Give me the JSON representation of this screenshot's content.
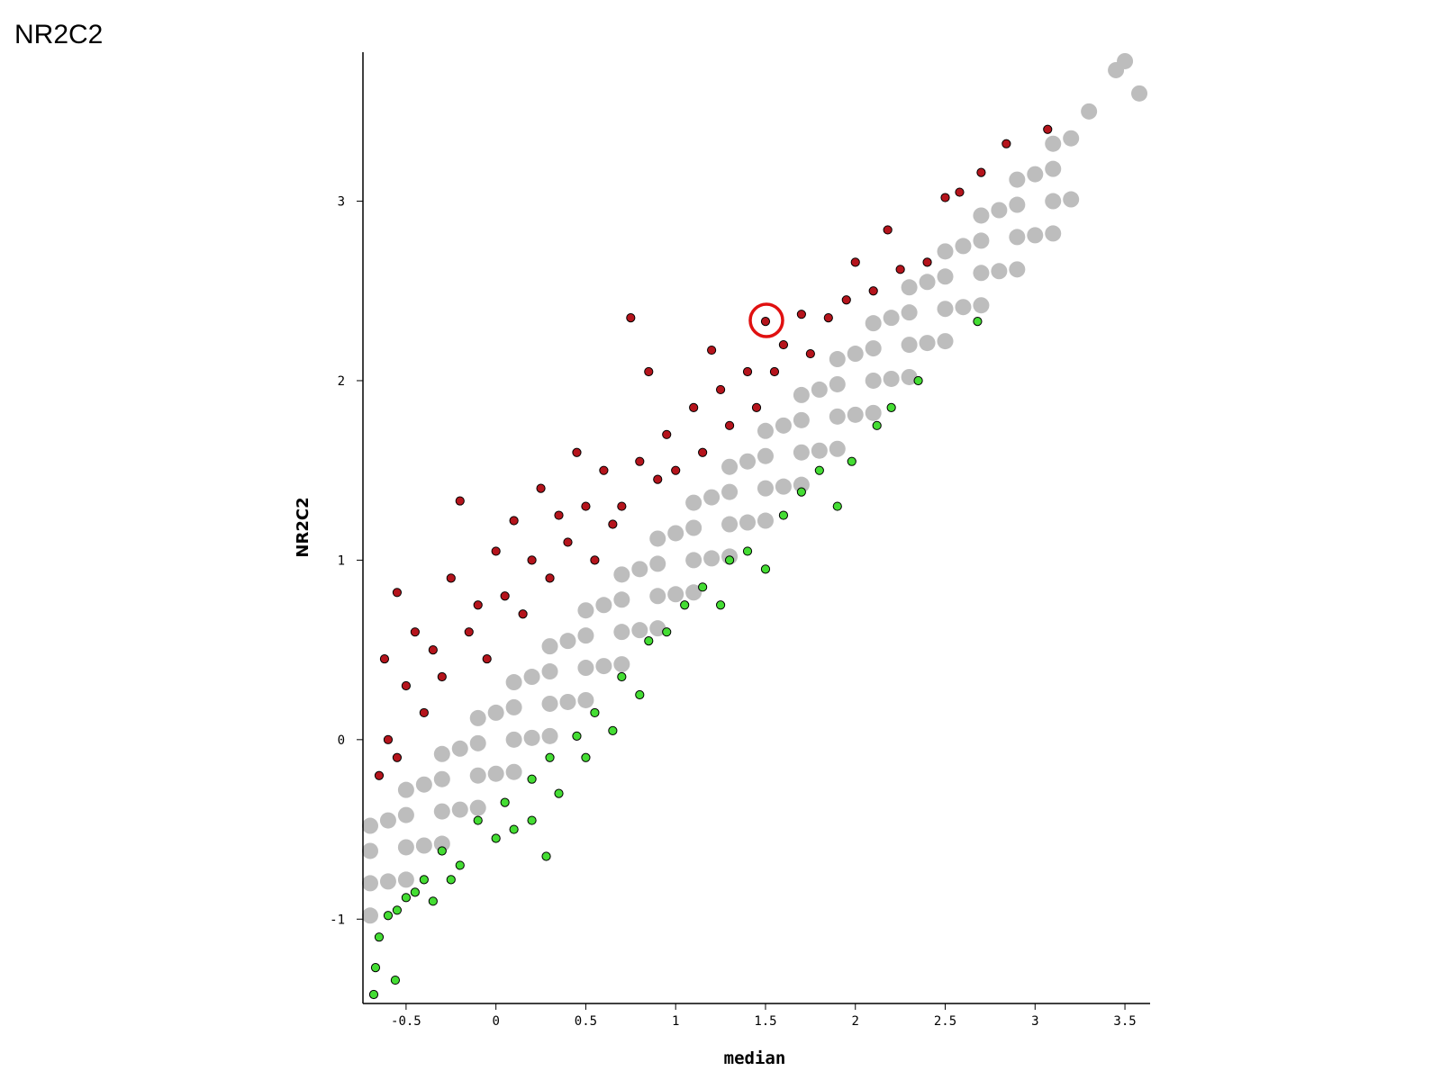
{
  "chart_data": {
    "type": "scatter",
    "title": "NR2C2",
    "x_label": "median",
    "y_label": "NR2C2",
    "xlim": [
      -0.74,
      3.64
    ],
    "ylim": [
      -1.47,
      3.83
    ],
    "xticks": [
      -0.5,
      0,
      0.5,
      1,
      1.5,
      2,
      2.5,
      3,
      3.5
    ],
    "yticks": [
      -1,
      0,
      1,
      2,
      3
    ],
    "grid": false,
    "series": [
      {
        "color": "#bdbdbd",
        "stroke": "none",
        "x": [
          -0.7,
          -0.5,
          -0.3,
          -0.1,
          0.1,
          0.3,
          0.5,
          0.7,
          0.9,
          1.1,
          1.3,
          1.5,
          1.7,
          1.9,
          2.1,
          2.3,
          2.5,
          2.7,
          2.9,
          3.1,
          -0.7,
          -0.5,
          -0.3,
          -0.1,
          0.1,
          0.3,
          0.5,
          0.7,
          0.9,
          1.1,
          1.3,
          1.5,
          1.7,
          1.9,
          2.1,
          2.3,
          2.5,
          2.7,
          2.9,
          3.1,
          -0.7,
          -0.5,
          -0.3,
          -0.1,
          0.1,
          0.3,
          0.5,
          0.7,
          0.9,
          1.1,
          1.3,
          1.5,
          1.7,
          1.9,
          2.1,
          2.3,
          2.5,
          2.7,
          2.9,
          3.1,
          -0.7,
          -0.5,
          -0.3,
          -0.1,
          0.1,
          0.3,
          0.5,
          0.7,
          0.9,
          1.1,
          1.3,
          1.5,
          1.7,
          1.9,
          2.1,
          2.3,
          2.5,
          2.7,
          2.9,
          3.1,
          -0.6,
          -0.4,
          -0.2,
          0,
          0.2,
          0.4,
          0.6,
          0.8,
          1,
          1.2,
          1.4,
          1.6,
          1.8,
          2,
          2.2,
          2.4,
          2.6,
          2.8,
          3,
          3.2,
          -0.6,
          -0.4,
          -0.2,
          0,
          0.2,
          0.4,
          0.6,
          0.8,
          1,
          1.2,
          1.4,
          1.6,
          1.8,
          2,
          2.2,
          2.4,
          2.6,
          2.8,
          3,
          3.2,
          3.3,
          3.45,
          3.5,
          3.58
        ],
        "values": [
          -0.98,
          -0.78,
          -0.58,
          -0.38,
          -0.18,
          0.02,
          0.22,
          0.42,
          0.62,
          0.82,
          1.02,
          1.22,
          1.42,
          1.62,
          1.82,
          2.02,
          2.22,
          2.42,
          2.62,
          2.82,
          -0.8,
          -0.6,
          -0.4,
          -0.2,
          0,
          0.2,
          0.4,
          0.6,
          0.8,
          1,
          1.2,
          1.4,
          1.6,
          1.8,
          2,
          2.2,
          2.4,
          2.6,
          2.8,
          3,
          -0.62,
          -0.42,
          -0.22,
          -0.02,
          0.18,
          0.38,
          0.58,
          0.78,
          0.98,
          1.18,
          1.38,
          1.58,
          1.78,
          1.98,
          2.18,
          2.38,
          2.58,
          2.78,
          2.98,
          3.18,
          -0.48,
          -0.28,
          -0.08,
          0.12,
          0.32,
          0.52,
          0.72,
          0.92,
          1.12,
          1.32,
          1.52,
          1.72,
          1.92,
          2.12,
          2.32,
          2.52,
          2.72,
          2.92,
          3.12,
          3.32,
          -0.79,
          -0.59,
          -0.39,
          -0.19,
          0.01,
          0.21,
          0.41,
          0.61,
          0.81,
          1.01,
          1.21,
          1.41,
          1.61,
          1.81,
          2.01,
          2.21,
          2.41,
          2.61,
          2.81,
          3.01,
          -0.45,
          -0.25,
          -0.05,
          0.15,
          0.35,
          0.55,
          0.75,
          0.95,
          1.15,
          1.35,
          1.55,
          1.75,
          1.95,
          2.15,
          2.35,
          2.55,
          2.75,
          2.95,
          3.15,
          3.35,
          3.5,
          3.73,
          3.78,
          3.6
        ]
      },
      {
        "color": "#b5141c",
        "stroke": "#000000",
        "x": [
          -0.65,
          -0.6,
          -0.62,
          -0.55,
          -0.5,
          -0.55,
          -0.45,
          -0.4,
          -0.35,
          -0.3,
          -0.25,
          -0.2,
          -0.15,
          -0.1,
          -0.05,
          0,
          0.05,
          0.1,
          0.15,
          0.2,
          0.25,
          0.3,
          0.35,
          0.4,
          0.45,
          0.5,
          0.55,
          0.6,
          0.65,
          0.7,
          0.75,
          0.8,
          0.85,
          0.9,
          0.95,
          1,
          1.1,
          1.15,
          1.2,
          1.25,
          1.3,
          1.4,
          1.45,
          1.5,
          1.55,
          1.6,
          1.7,
          1.75,
          1.85,
          1.95,
          2,
          2.1,
          2.18,
          2.25,
          2.4,
          2.5,
          2.58,
          2.7,
          2.84,
          3.07
        ],
        "values": [
          -0.2,
          0,
          0.45,
          0.82,
          0.3,
          -0.1,
          0.6,
          0.15,
          0.5,
          0.35,
          0.9,
          1.33,
          0.6,
          0.75,
          0.45,
          1.05,
          0.8,
          1.22,
          0.7,
          1,
          1.4,
          0.9,
          1.25,
          1.1,
          1.6,
          1.3,
          1,
          1.5,
          1.2,
          1.3,
          2.35,
          1.55,
          2.05,
          1.45,
          1.7,
          1.5,
          1.85,
          1.6,
          2.17,
          1.95,
          1.75,
          2.05,
          1.85,
          2.33,
          2.05,
          2.2,
          2.37,
          2.15,
          2.35,
          2.45,
          2.66,
          2.5,
          2.84,
          2.62,
          2.66,
          3.02,
          3.05,
          3.16,
          3.32,
          3.4
        ]
      },
      {
        "color": "#44dd33",
        "stroke": "#000000",
        "x": [
          -0.68,
          -0.67,
          -0.65,
          -0.6,
          -0.55,
          -0.56,
          -0.5,
          -0.45,
          -0.4,
          -0.35,
          -0.3,
          -0.25,
          -0.2,
          -0.1,
          0,
          0.05,
          0.1,
          0.2,
          0.2,
          0.28,
          0.3,
          0.35,
          0.45,
          0.5,
          0.55,
          0.65,
          0.7,
          0.8,
          0.85,
          0.95,
          1.05,
          1.15,
          1.25,
          1.3,
          1.4,
          1.5,
          1.6,
          1.7,
          1.8,
          1.9,
          1.98,
          2.12,
          2.2,
          2.35,
          2.68
        ],
        "values": [
          -1.42,
          -1.27,
          -1.1,
          -0.98,
          -0.95,
          -1.34,
          -0.88,
          -0.85,
          -0.78,
          -0.9,
          -0.62,
          -0.78,
          -0.7,
          -0.45,
          -0.55,
          -0.35,
          -0.5,
          -0.22,
          -0.45,
          -0.65,
          -0.1,
          -0.3,
          0.02,
          -0.1,
          0.15,
          0.05,
          0.35,
          0.25,
          0.55,
          0.6,
          0.75,
          0.85,
          0.75,
          1,
          1.05,
          0.95,
          1.25,
          1.38,
          1.5,
          1.3,
          1.55,
          1.75,
          1.85,
          2,
          2.33
        ]
      }
    ]
  }
}
